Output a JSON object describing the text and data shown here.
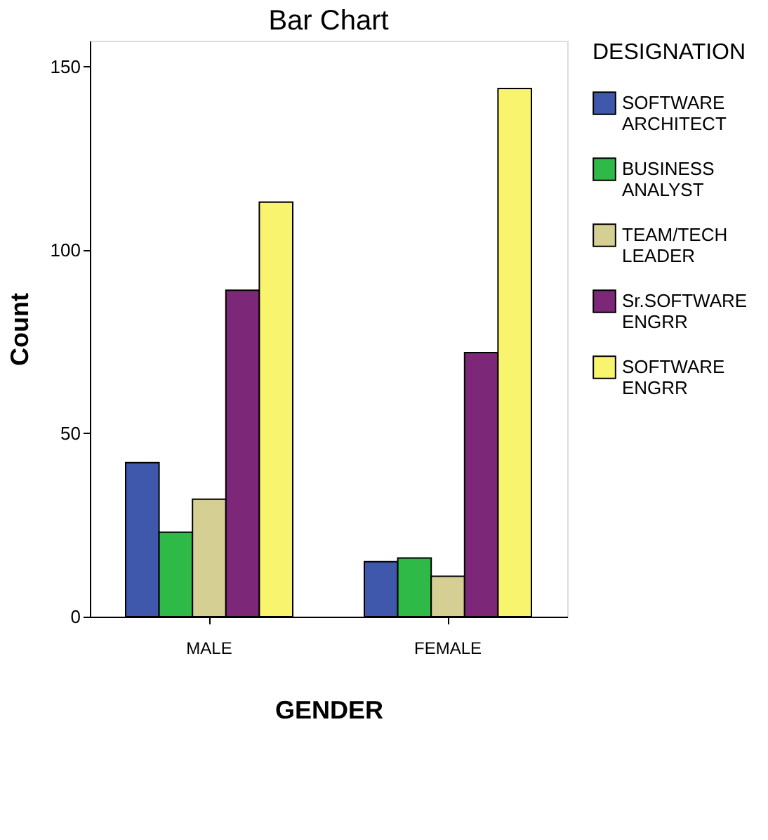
{
  "chart_data": {
    "type": "bar",
    "title": "Bar Chart",
    "xlabel": "GENDER",
    "ylabel": "Count",
    "legend_title": "DESIGNATION",
    "legend": "right",
    "grid": false,
    "categories": [
      "MALE",
      "FEMALE"
    ],
    "ylim": [
      0,
      157
    ],
    "yticks": [
      0,
      50,
      100,
      150
    ],
    "series": [
      {
        "name": "SOFTWARE ARCHITECT",
        "color": "#3f58ac",
        "values": [
          42,
          15
        ]
      },
      {
        "name": "BUSINESS ANALYST",
        "color": "#2fba48",
        "values": [
          23,
          16
        ]
      },
      {
        "name": "TEAM/TECH LEADER",
        "color": "#d5cf94",
        "values": [
          32,
          11
        ]
      },
      {
        "name": "Sr.SOFTWARE ENGRR",
        "color": "#7d2779",
        "values": [
          89,
          72
        ]
      },
      {
        "name": "SOFTWARE ENGRR",
        "color": "#f8f46e",
        "values": [
          113,
          144
        ]
      }
    ]
  }
}
